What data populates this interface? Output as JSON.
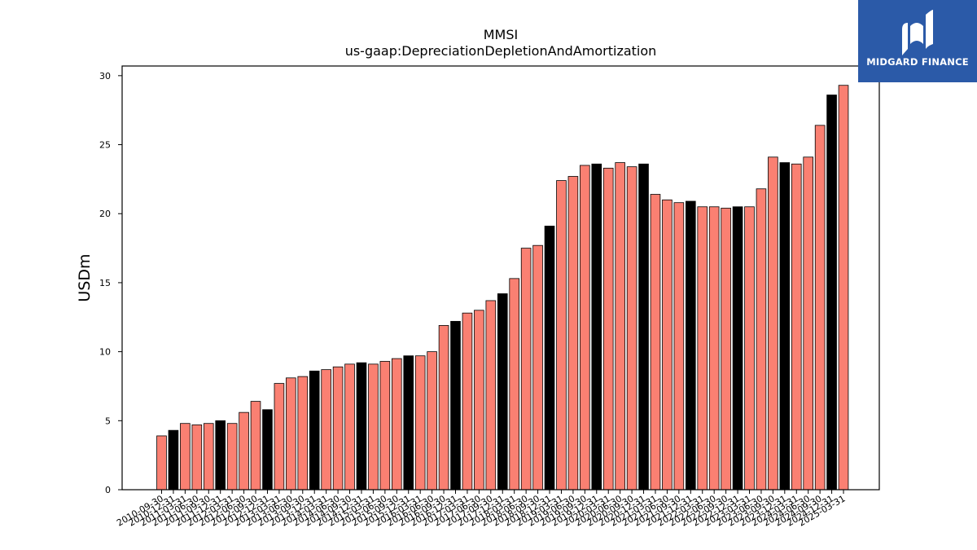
{
  "chart_data": {
    "type": "bar",
    "title": "MMSI",
    "subtitle": "us-gaap:DepreciationDepletionAndAmortization",
    "xlabel": "",
    "ylabel": "USDm",
    "ylim": [
      0,
      30.7
    ],
    "yticks": [
      0,
      5,
      10,
      15,
      20,
      25,
      30
    ],
    "grid": false,
    "colors": {
      "quarter": "#fa8072",
      "year_end": "#000000",
      "edge": "#000000"
    },
    "categories": [
      "2010-09-30",
      "2010-12-31",
      "2011-03-31",
      "2011-06-30",
      "2011-09-30",
      "2011-12-31",
      "2012-03-31",
      "2012-06-30",
      "2012-09-30",
      "2012-12-31",
      "2013-03-31",
      "2013-06-30",
      "2013-09-30",
      "2013-12-31",
      "2014-03-31",
      "2014-06-30",
      "2014-09-30",
      "2014-12-31",
      "2015-03-31",
      "2015-06-30",
      "2015-09-30",
      "2015-12-31",
      "2016-03-31",
      "2016-06-30",
      "2016-09-30",
      "2016-12-31",
      "2017-03-31",
      "2017-06-30",
      "2017-09-30",
      "2017-12-31",
      "2018-03-31",
      "2018-06-30",
      "2018-09-30",
      "2018-12-31",
      "2019-03-31",
      "2019-06-30",
      "2019-09-30",
      "2019-12-31",
      "2020-03-31",
      "2020-06-30",
      "2020-09-30",
      "2020-12-31",
      "2021-03-31",
      "2021-06-30",
      "2021-09-30",
      "2021-12-31",
      "2022-03-31",
      "2022-06-30",
      "2022-09-30",
      "2022-12-31",
      "2023-03-31",
      "2023-06-30",
      "2023-09-30",
      "2023-12-31",
      "2024-03-31",
      "2024-06-30",
      "2024-09-30",
      "2024-12-31",
      "2025-03-31"
    ],
    "values": [
      3.9,
      4.3,
      4.8,
      4.7,
      4.8,
      5.0,
      4.8,
      5.6,
      6.4,
      5.8,
      7.7,
      8.1,
      8.2,
      8.6,
      8.7,
      8.9,
      9.1,
      9.2,
      9.1,
      9.3,
      9.5,
      9.7,
      9.7,
      10.0,
      11.9,
      12.2,
      12.8,
      13.0,
      13.7,
      14.2,
      15.3,
      17.5,
      17.7,
      19.1,
      22.4,
      22.7,
      23.5,
      23.6,
      23.3,
      23.7,
      23.4,
      23.6,
      21.4,
      21.0,
      20.8,
      20.9,
      20.5,
      20.5,
      20.4,
      20.5,
      20.5,
      21.8,
      24.1,
      23.7,
      23.6,
      24.1,
      26.4,
      28.6,
      29.3
    ],
    "year_end": [
      false,
      true,
      false,
      false,
      false,
      true,
      false,
      false,
      false,
      true,
      false,
      false,
      false,
      true,
      false,
      false,
      false,
      true,
      false,
      false,
      false,
      true,
      false,
      false,
      false,
      true,
      false,
      false,
      false,
      true,
      false,
      false,
      false,
      true,
      false,
      false,
      false,
      true,
      false,
      false,
      false,
      true,
      false,
      false,
      false,
      true,
      false,
      false,
      false,
      true,
      false,
      false,
      false,
      true,
      false,
      false,
      false,
      true,
      false
    ]
  },
  "logo": {
    "text": "MIDGARD FINANCE",
    "color": "#2b5aa8"
  }
}
